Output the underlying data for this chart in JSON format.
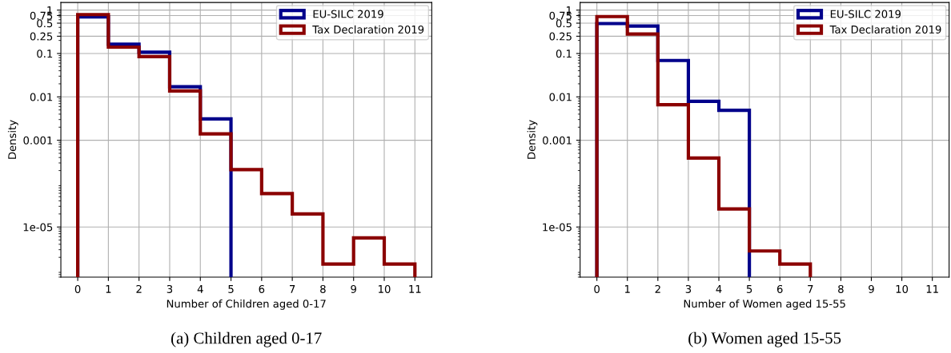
{
  "chart_data": [
    {
      "type": "histogram",
      "title": "(a) Children aged 0-17",
      "xlabel": "Number of Children aged 0-17",
      "ylabel": "Density",
      "log": "y",
      "bins": [
        0,
        1,
        2,
        3,
        4,
        5,
        6,
        7,
        8,
        9,
        10,
        11
      ],
      "series": [
        {
          "name": "EU-SILC 2019",
          "color": "#00008b",
          "bins": [
            0,
            1,
            2,
            3,
            4,
            5
          ],
          "values": [
            0.7,
            0.164,
            0.107,
            0.0171,
            0.0031
          ]
        },
        {
          "name": "Tax Declaration 2019",
          "color": "#8b0000",
          "values": [
            0.79,
            0.14,
            0.085,
            0.0137,
            0.0014,
            0.00021,
            5.9e-05,
            2e-05,
            1.4e-06,
            5.6e-06,
            1.4e-06
          ]
        }
      ],
      "xlim": [
        -0.55,
        11.55
      ],
      "ylim": [
        7e-07,
        1.5
      ],
      "xticks": [
        0,
        1,
        2,
        3,
        4,
        5,
        6,
        7,
        8,
        9,
        10,
        11
      ],
      "yticks": [
        1e-05,
        0.001,
        0.01,
        0.1,
        0.25,
        0.5,
        0.75,
        1
      ],
      "grid": true,
      "legend": "top right"
    },
    {
      "type": "histogram",
      "title": "(b) Women aged 15-55",
      "xlabel": "Number of Women aged 15-55",
      "ylabel": "Density",
      "log": "y",
      "bins": [
        0,
        1,
        2,
        3,
        4,
        5,
        6,
        7
      ],
      "series": [
        {
          "name": "EU-SILC 2019",
          "color": "#00008b",
          "bins": [
            0,
            1,
            2,
            3,
            4,
            5
          ],
          "values": [
            0.49,
            0.43,
            0.069,
            0.0079,
            0.0049
          ]
        },
        {
          "name": "Tax Declaration 2019",
          "color": "#8b0000",
          "values": [
            0.71,
            0.28,
            0.0066,
            0.00039,
            2.6e-05,
            2.8e-06,
            1.4e-06
          ]
        }
      ],
      "xlim": [
        -0.55,
        11.55
      ],
      "ylim": [
        7e-07,
        1.5
      ],
      "xticks": [
        0,
        1,
        2,
        3,
        4,
        5,
        6,
        7,
        8,
        9,
        10,
        11
      ],
      "yticks": [
        1e-05,
        0.001,
        0.01,
        0.1,
        0.25,
        0.5,
        0.75,
        1
      ],
      "grid": true,
      "legend": "top right"
    }
  ]
}
